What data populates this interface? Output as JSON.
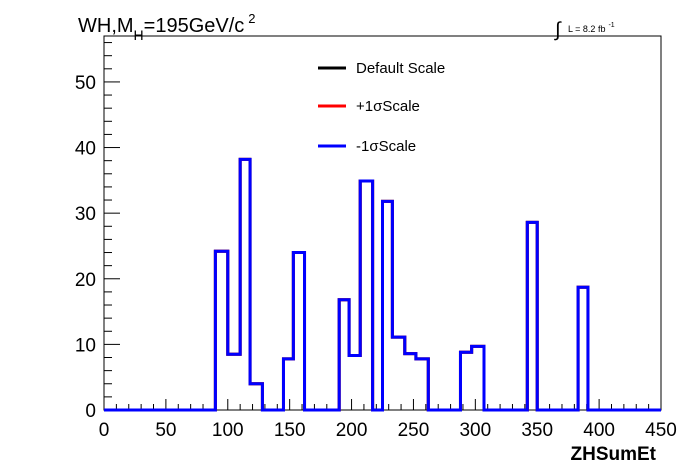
{
  "chart_data": {
    "type": "line",
    "title": {
      "prefix": "WH,M",
      "subscript": "H",
      "value": "=195GeV/c",
      "superscript": "2"
    },
    "lumi": {
      "integral_sign": "∫",
      "text": "L = 8.2 fb",
      "superscript": "-1"
    },
    "xlabel": "ZHSumEt",
    "ylabel": "",
    "xlim": [
      0,
      450
    ],
    "ylim": [
      0,
      57
    ],
    "x_ticks": [
      0,
      50,
      100,
      150,
      200,
      250,
      300,
      350,
      400,
      450
    ],
    "y_ticks": [
      0,
      10,
      20,
      30,
      40,
      50
    ],
    "grid": false,
    "legend_position": "top-center",
    "series": [
      {
        "name": "Default Scale",
        "color": "#000000",
        "bins": [
          [
            0,
            90,
            0
          ],
          [
            90,
            100,
            24.2
          ],
          [
            100,
            110,
            8.5
          ],
          [
            110,
            118,
            38.2
          ],
          [
            118,
            128,
            4.0
          ],
          [
            128,
            145,
            0
          ],
          [
            145,
            153,
            7.8
          ],
          [
            153,
            162,
            24.0
          ],
          [
            162,
            190,
            0
          ],
          [
            190,
            198,
            16.8
          ],
          [
            198,
            207,
            8.3
          ],
          [
            207,
            217,
            34.9
          ],
          [
            217,
            225,
            0
          ],
          [
            225,
            233,
            31.8
          ],
          [
            233,
            243,
            11.1
          ],
          [
            243,
            252,
            8.6
          ],
          [
            252,
            262,
            7.8
          ],
          [
            262,
            288,
            0
          ],
          [
            288,
            297,
            8.8
          ],
          [
            297,
            307,
            9.7
          ],
          [
            307,
            342,
            0
          ],
          [
            342,
            350,
            28.6
          ],
          [
            350,
            383,
            0
          ],
          [
            383,
            391,
            18.7
          ],
          [
            391,
            450,
            0
          ]
        ]
      },
      {
        "name": "+1σScale",
        "color": "#ff0000",
        "bins": [
          [
            0,
            90,
            0
          ],
          [
            90,
            100,
            24.2
          ],
          [
            100,
            110,
            8.5
          ],
          [
            110,
            118,
            38.2
          ],
          [
            118,
            128,
            4.0
          ],
          [
            128,
            145,
            0
          ],
          [
            145,
            153,
            7.8
          ],
          [
            153,
            162,
            24.0
          ],
          [
            162,
            190,
            0
          ],
          [
            190,
            198,
            16.8
          ],
          [
            198,
            207,
            8.3
          ],
          [
            207,
            217,
            34.9
          ],
          [
            217,
            225,
            0
          ],
          [
            225,
            233,
            31.8
          ],
          [
            233,
            243,
            11.1
          ],
          [
            243,
            252,
            8.6
          ],
          [
            252,
            262,
            7.8
          ],
          [
            262,
            288,
            0
          ],
          [
            288,
            297,
            8.8
          ],
          [
            297,
            307,
            9.7
          ],
          [
            307,
            342,
            0
          ],
          [
            342,
            350,
            28.6
          ],
          [
            350,
            383,
            0
          ],
          [
            383,
            391,
            18.7
          ],
          [
            391,
            450,
            0
          ]
        ]
      },
      {
        "name": "-1σScale",
        "color": "#0000ff",
        "bins": [
          [
            0,
            90,
            0
          ],
          [
            90,
            100,
            24.2
          ],
          [
            100,
            110,
            8.5
          ],
          [
            110,
            118,
            38.2
          ],
          [
            118,
            128,
            4.0
          ],
          [
            128,
            145,
            0
          ],
          [
            145,
            153,
            7.8
          ],
          [
            153,
            162,
            24.0
          ],
          [
            162,
            190,
            0
          ],
          [
            190,
            198,
            16.8
          ],
          [
            198,
            207,
            8.3
          ],
          [
            207,
            217,
            34.9
          ],
          [
            217,
            225,
            0
          ],
          [
            225,
            233,
            31.8
          ],
          [
            233,
            243,
            11.1
          ],
          [
            243,
            252,
            8.6
          ],
          [
            252,
            262,
            7.8
          ],
          [
            262,
            288,
            0
          ],
          [
            288,
            297,
            8.8
          ],
          [
            297,
            307,
            9.7
          ],
          [
            307,
            342,
            0
          ],
          [
            342,
            350,
            28.6
          ],
          [
            350,
            383,
            0
          ],
          [
            383,
            391,
            18.7
          ],
          [
            391,
            450,
            0
          ]
        ]
      }
    ]
  }
}
